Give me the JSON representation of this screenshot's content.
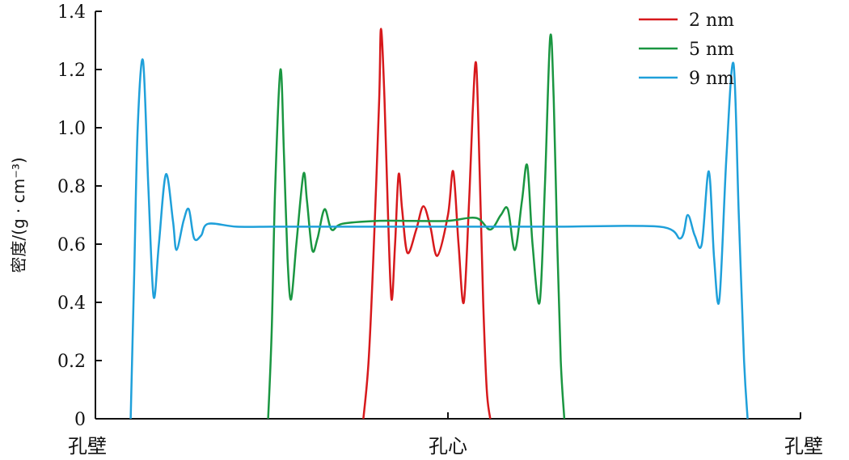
{
  "chart_data": {
    "type": "line",
    "title": "",
    "xlabel": "",
    "ylabel": "密度/(g · cm⁻³)",
    "ylim": [
      0,
      1.4
    ],
    "yticks": [
      "0",
      "0.2",
      "0.4",
      "0.6",
      "0.8",
      "1.0",
      "1.2",
      "1.4"
    ],
    "xlim": [
      -1,
      1
    ],
    "x_categories": [
      {
        "x": -0.9,
        "label": "孔壁"
      },
      {
        "x": 0.0,
        "label": "孔心"
      },
      {
        "x": 0.9,
        "label": "孔壁"
      }
    ],
    "legend": "top-right",
    "grid": false,
    "series": [
      {
        "name": "2 nm",
        "color": "#d7191c",
        "points": [
          [
            -0.24,
            0.0
          ],
          [
            -0.225,
            0.2
          ],
          [
            -0.21,
            0.6
          ],
          [
            -0.195,
            1.1
          ],
          [
            -0.19,
            1.34
          ],
          [
            -0.18,
            1.1
          ],
          [
            -0.17,
            0.7
          ],
          [
            -0.16,
            0.41
          ],
          [
            -0.15,
            0.6
          ],
          [
            -0.14,
            0.84
          ],
          [
            -0.13,
            0.72
          ],
          [
            -0.115,
            0.57
          ],
          [
            -0.09,
            0.65
          ],
          [
            -0.07,
            0.73
          ],
          [
            -0.05,
            0.66
          ],
          [
            -0.03,
            0.56
          ],
          [
            0.0,
            0.7
          ],
          [
            0.015,
            0.85
          ],
          [
            0.03,
            0.6
          ],
          [
            0.045,
            0.4
          ],
          [
            0.06,
            0.75
          ],
          [
            0.07,
            1.05
          ],
          [
            0.08,
            1.22
          ],
          [
            0.09,
            0.85
          ],
          [
            0.1,
            0.4
          ],
          [
            0.11,
            0.1
          ],
          [
            0.12,
            0.0
          ]
        ]
      },
      {
        "name": "5 nm",
        "color": "#1a9641",
        "points": [
          [
            -0.51,
            0.0
          ],
          [
            -0.5,
            0.3
          ],
          [
            -0.49,
            0.8
          ],
          [
            -0.475,
            1.2
          ],
          [
            -0.465,
            0.9
          ],
          [
            -0.455,
            0.55
          ],
          [
            -0.445,
            0.41
          ],
          [
            -0.43,
            0.6
          ],
          [
            -0.41,
            0.84
          ],
          [
            -0.4,
            0.75
          ],
          [
            -0.385,
            0.58
          ],
          [
            -0.37,
            0.62
          ],
          [
            -0.35,
            0.72
          ],
          [
            -0.33,
            0.65
          ],
          [
            -0.3,
            0.67
          ],
          [
            -0.2,
            0.68
          ],
          [
            -0.1,
            0.68
          ],
          [
            0.0,
            0.68
          ],
          [
            0.08,
            0.69
          ],
          [
            0.12,
            0.65
          ],
          [
            0.15,
            0.7
          ],
          [
            0.17,
            0.72
          ],
          [
            0.19,
            0.58
          ],
          [
            0.21,
            0.75
          ],
          [
            0.225,
            0.87
          ],
          [
            0.24,
            0.6
          ],
          [
            0.26,
            0.4
          ],
          [
            0.275,
            0.8
          ],
          [
            0.29,
            1.31
          ],
          [
            0.3,
            1.1
          ],
          [
            0.31,
            0.6
          ],
          [
            0.32,
            0.2
          ],
          [
            0.33,
            0.0
          ]
        ]
      },
      {
        "name": "9 nm",
        "color": "#1fa0da",
        "points": [
          [
            -0.9,
            0.0
          ],
          [
            -0.89,
            0.5
          ],
          [
            -0.88,
            1.0
          ],
          [
            -0.865,
            1.23
          ],
          [
            -0.85,
            0.8
          ],
          [
            -0.835,
            0.42
          ],
          [
            -0.82,
            0.6
          ],
          [
            -0.8,
            0.84
          ],
          [
            -0.78,
            0.68
          ],
          [
            -0.77,
            0.58
          ],
          [
            -0.75,
            0.68
          ],
          [
            -0.735,
            0.72
          ],
          [
            -0.72,
            0.62
          ],
          [
            -0.7,
            0.63
          ],
          [
            -0.68,
            0.67
          ],
          [
            -0.6,
            0.66
          ],
          [
            -0.5,
            0.66
          ],
          [
            -0.4,
            0.66
          ],
          [
            -0.3,
            0.66
          ],
          [
            -0.2,
            0.66
          ],
          [
            -0.1,
            0.66
          ],
          [
            0.0,
            0.66
          ],
          [
            0.1,
            0.66
          ],
          [
            0.2,
            0.66
          ],
          [
            0.3,
            0.66
          ],
          [
            0.6,
            0.66
          ],
          [
            0.66,
            0.62
          ],
          [
            0.68,
            0.7
          ],
          [
            0.7,
            0.63
          ],
          [
            0.72,
            0.6
          ],
          [
            0.74,
            0.85
          ],
          [
            0.755,
            0.55
          ],
          [
            0.77,
            0.41
          ],
          [
            0.79,
            0.9
          ],
          [
            0.81,
            1.22
          ],
          [
            0.825,
            0.7
          ],
          [
            0.84,
            0.2
          ],
          [
            0.85,
            0.0
          ]
        ]
      }
    ]
  }
}
